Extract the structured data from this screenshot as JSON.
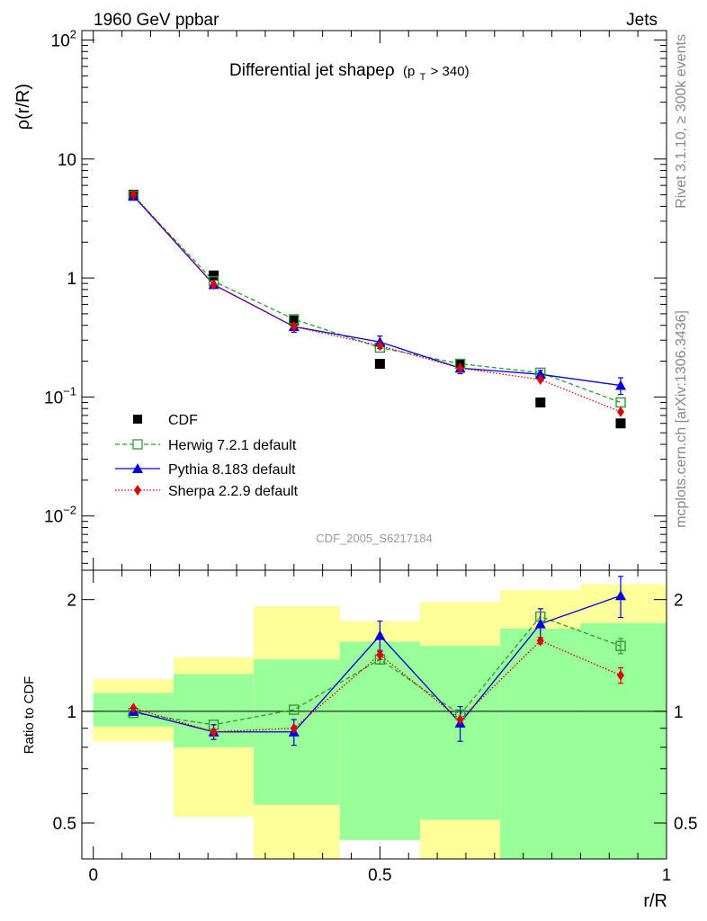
{
  "header": {
    "left": "1960 GeV ppbar",
    "right": "Jets",
    "side_top": "Rivet 3.1.10, ≥ 300k events",
    "side_bottom": "mcplots.cern.ch [arXiv:1306.3436]"
  },
  "chart_data": [
    {
      "type": "scatter",
      "panel": "main",
      "title": "Differential jet shapeρ",
      "title_sub": "(p",
      "title_sub_index": "T",
      "title_sub_end": " > 340)",
      "ylabel": "ρ(r/R)",
      "yscale": "log",
      "ylim": [
        0.0035,
        120
      ],
      "xlim": [
        -0.02,
        1.0
      ],
      "yticks": [
        {
          "value": 100,
          "base": "10",
          "exp": "2"
        },
        {
          "value": 10,
          "base": "10",
          "exp": ""
        },
        {
          "value": 1,
          "base": "1",
          "exp": ""
        },
        {
          "value": 0.1,
          "base": "10",
          "exp": "−1"
        },
        {
          "value": 0.01,
          "base": "10",
          "exp": "−2"
        }
      ],
      "x": [
        0.07,
        0.21,
        0.35,
        0.5,
        0.64,
        0.78,
        0.92
      ],
      "series": [
        {
          "name": "CDF",
          "marker": "filled-square",
          "color": "#000000",
          "line": "none",
          "values": [
            5.0,
            1.05,
            0.44,
            0.19,
            0.19,
            0.09,
            0.06
          ]
        },
        {
          "name": "Herwig 7.2.1 default",
          "marker": "open-square",
          "color": "#339933",
          "line": "dashed",
          "values": [
            4.9,
            0.94,
            0.45,
            0.26,
            0.19,
            0.16,
            0.09
          ]
        },
        {
          "name": "Pythia 8.183 default",
          "marker": "triangle",
          "color": "#0000dd",
          "line": "solid",
          "values": [
            4.9,
            0.88,
            0.39,
            0.29,
            0.175,
            0.155,
            0.125
          ],
          "errors": [
            0.0,
            0.0,
            0.04,
            0.035,
            0.018,
            0.012,
            0.02
          ]
        },
        {
          "name": "Sherpa 2.2.9 default",
          "marker": "diamond",
          "color": "#dd0000",
          "line": "dotted",
          "values": [
            5.0,
            0.88,
            0.39,
            0.27,
            0.175,
            0.14,
            0.075
          ]
        }
      ],
      "watermark": "CDF_2005_S6217184"
    },
    {
      "type": "scatter",
      "panel": "ratio",
      "ylabel": "Ratio to CDF",
      "xlabel": "r/R",
      "yscale": "log",
      "ylim": [
        0.4,
        2.4
      ],
      "yticks": [
        {
          "value": 0.5,
          "label": "0.5"
        },
        {
          "value": 1,
          "label": "1"
        },
        {
          "value": 2,
          "label": "2"
        }
      ],
      "xticks": [
        {
          "value": 0,
          "label": "0"
        },
        {
          "value": 0.5,
          "label": "0.5"
        },
        {
          "value": 1,
          "label": "1"
        }
      ],
      "bins": [
        [
          0.0,
          0.14
        ],
        [
          0.14,
          0.28
        ],
        [
          0.28,
          0.43
        ],
        [
          0.43,
          0.57
        ],
        [
          0.57,
          0.71
        ],
        [
          0.71,
          0.85
        ],
        [
          0.85,
          1.0
        ]
      ],
      "band_yellow": [
        [
          0.83,
          1.22
        ],
        [
          0.52,
          1.4
        ],
        [
          0.4,
          1.92
        ],
        [
          0.72,
          1.75
        ],
        [
          0.4,
          1.97
        ],
        [
          0.4,
          2.12
        ],
        [
          0.4,
          2.2
        ]
      ],
      "band_green": [
        [
          0.91,
          1.12
        ],
        [
          0.8,
          1.26
        ],
        [
          0.56,
          1.38
        ],
        [
          0.45,
          1.54
        ],
        [
          0.51,
          1.5
        ],
        [
          0.38,
          1.67
        ],
        [
          0.36,
          1.73
        ]
      ],
      "x": [
        0.07,
        0.21,
        0.35,
        0.5,
        0.64,
        0.78,
        0.92
      ],
      "series": [
        {
          "name": "Herwig 7.2.1 default",
          "marker": "open-square",
          "color": "#339933",
          "line": "dashed",
          "values": [
            0.99,
            0.92,
            1.01,
            1.38,
            0.98,
            1.8,
            1.5
          ],
          "errors": [
            0.0,
            0.0,
            0.0,
            0.04,
            0.0,
            0.0,
            0.07
          ]
        },
        {
          "name": "Pythia 8.183 default",
          "marker": "triangle",
          "color": "#0000dd",
          "line": "solid",
          "values": [
            1.0,
            0.88,
            0.88,
            1.6,
            0.93,
            1.72,
            2.05
          ],
          "errors": [
            0.0,
            0.04,
            0.07,
            0.15,
            0.1,
            0.17,
            0.26
          ]
        },
        {
          "name": "Sherpa 2.2.9 default",
          "marker": "diamond",
          "color": "#dd0000",
          "line": "dotted",
          "values": [
            1.02,
            0.88,
            0.9,
            1.42,
            0.95,
            1.55,
            1.25
          ],
          "errors": [
            0.0,
            0.0,
            0.0,
            0.04,
            0.0,
            0.03,
            0.06
          ]
        }
      ]
    }
  ]
}
